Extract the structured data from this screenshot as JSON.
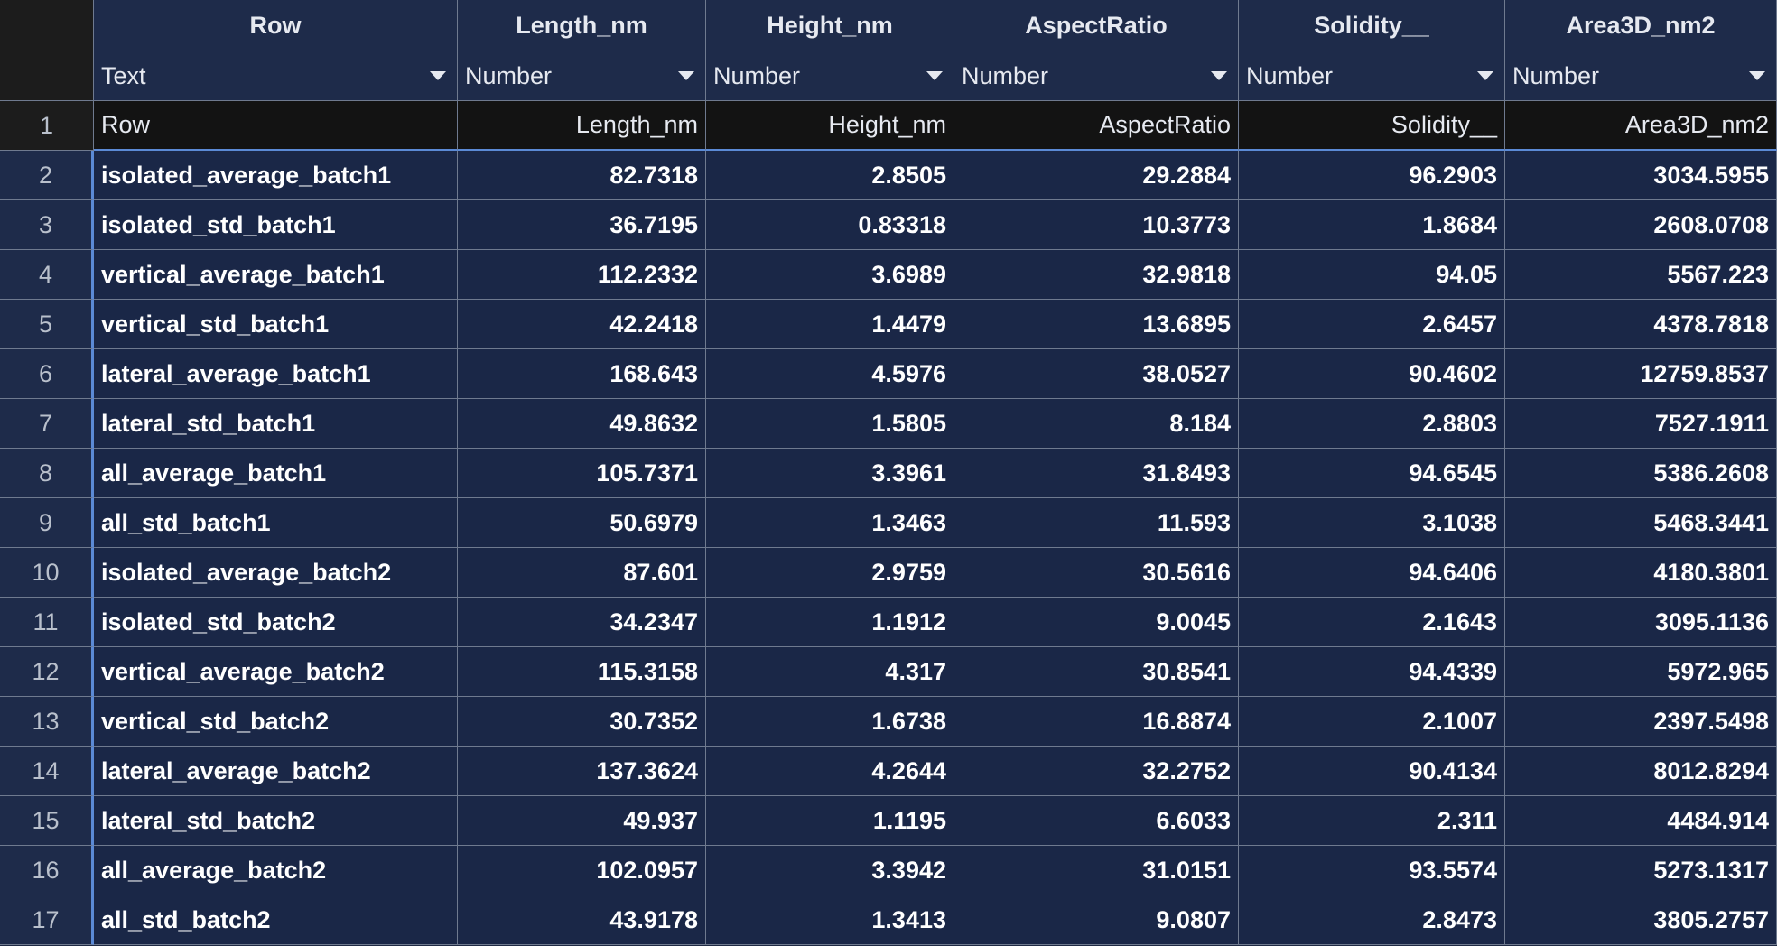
{
  "columns": [
    "Row",
    "Length_nm",
    "Height_nm",
    "AspectRatio",
    "Solidity__",
    "Area3D_nm2"
  ],
  "types": [
    "Text",
    "Number",
    "Number",
    "Number",
    "Number",
    "Number"
  ],
  "header_row": {
    "num": "1",
    "cells": [
      "Row",
      "Length_nm",
      "Height_nm",
      "AspectRatio",
      "Solidity__",
      "Area3D_nm2"
    ]
  },
  "rows": [
    {
      "num": "2",
      "cells": [
        "isolated_average_batch1",
        "82.7318",
        "2.8505",
        "29.2884",
        "96.2903",
        "3034.5955"
      ]
    },
    {
      "num": "3",
      "cells": [
        "isolated_std_batch1",
        "36.7195",
        "0.83318",
        "10.3773",
        "1.8684",
        "2608.0708"
      ]
    },
    {
      "num": "4",
      "cells": [
        "vertical_average_batch1",
        "112.2332",
        "3.6989",
        "32.9818",
        "94.05",
        "5567.223"
      ]
    },
    {
      "num": "5",
      "cells": [
        "vertical_std_batch1",
        "42.2418",
        "1.4479",
        "13.6895",
        "2.6457",
        "4378.7818"
      ]
    },
    {
      "num": "6",
      "cells": [
        "lateral_average_batch1",
        "168.643",
        "4.5976",
        "38.0527",
        "90.4602",
        "12759.8537"
      ]
    },
    {
      "num": "7",
      "cells": [
        "lateral_std_batch1",
        "49.8632",
        "1.5805",
        "8.184",
        "2.8803",
        "7527.1911"
      ]
    },
    {
      "num": "8",
      "cells": [
        "all_average_batch1",
        "105.7371",
        "3.3961",
        "31.8493",
        "94.6545",
        "5386.2608"
      ]
    },
    {
      "num": "9",
      "cells": [
        "all_std_batch1",
        "50.6979",
        "1.3463",
        "11.593",
        "3.1038",
        "5468.3441"
      ]
    },
    {
      "num": "10",
      "cells": [
        "isolated_average_batch2",
        "87.601",
        "2.9759",
        "30.5616",
        "94.6406",
        "4180.3801"
      ]
    },
    {
      "num": "11",
      "cells": [
        "isolated_std_batch2",
        "34.2347",
        "1.1912",
        "9.0045",
        "2.1643",
        "3095.1136"
      ]
    },
    {
      "num": "12",
      "cells": [
        "vertical_average_batch2",
        "115.3158",
        "4.317",
        "30.8541",
        "94.4339",
        "5972.965"
      ]
    },
    {
      "num": "13",
      "cells": [
        "vertical_std_batch2",
        "30.7352",
        "1.6738",
        "16.8874",
        "2.1007",
        "2397.5498"
      ]
    },
    {
      "num": "14",
      "cells": [
        "lateral_average_batch2",
        "137.3624",
        "4.2644",
        "32.2752",
        "90.4134",
        "8012.8294"
      ]
    },
    {
      "num": "15",
      "cells": [
        "lateral_std_batch2",
        "49.937",
        "1.1195",
        "6.6033",
        "2.311",
        "4484.914"
      ]
    },
    {
      "num": "16",
      "cells": [
        "all_average_batch2",
        "102.0957",
        "3.3942",
        "31.0151",
        "93.5574",
        "5273.1317"
      ]
    },
    {
      "num": "17",
      "cells": [
        "all_std_batch2",
        "43.9178",
        "1.3413",
        "9.0807",
        "2.8473",
        "3805.2757"
      ]
    }
  ]
}
